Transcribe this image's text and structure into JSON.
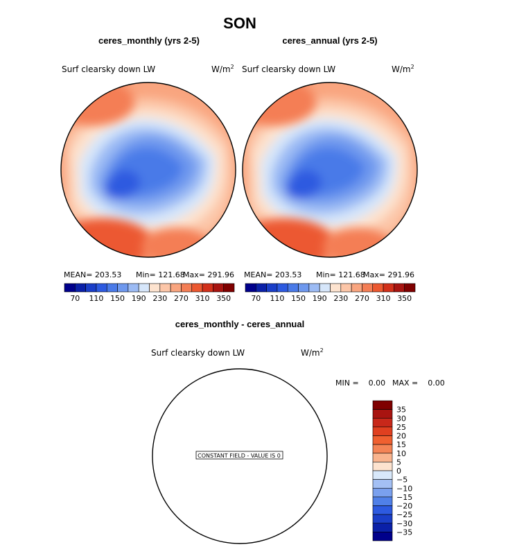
{
  "title": "SON",
  "panels": [
    {
      "subtitle": "ceres_monthly (yrs 2-5)",
      "field_label": "Surf clearsky down LW",
      "units_base": "W/m",
      "units_exp": "2",
      "stats": {
        "mean": "MEAN= 203.53",
        "min": "Min= 121.68",
        "max": "Max= 291.96"
      }
    },
    {
      "subtitle": "ceres_annual (yrs 2-5)",
      "field_label": "Surf clearsky down LW",
      "units_base": "W/m",
      "units_exp": "2",
      "stats": {
        "mean": "MEAN= 203.53",
        "min": "Min= 121.68",
        "max": "Max= 291.96"
      }
    },
    {
      "subtitle": "ceres_monthly - ceres_annual",
      "field_label": "Surf clearsky down LW",
      "units_base": "W/m",
      "units_exp": "2",
      "stats": {
        "min": "MIN =    0.00",
        "max": "MAX =    0.00"
      },
      "constant_note": "CONSTANT FIELD - VALUE IS 0"
    }
  ],
  "chart_data": [
    {
      "type": "heatmap",
      "title": "ceres_monthly (yrs 2-5)",
      "variable": "Surf clearsky down LW",
      "units": "W/m^2",
      "projection": "north polar stereographic",
      "mean": 203.53,
      "min": 121.68,
      "max": 291.96,
      "colorbar": {
        "levels": [
          70,
          90,
          110,
          130,
          150,
          170,
          190,
          210,
          230,
          250,
          270,
          290,
          310,
          330,
          350
        ],
        "tick_labels": [
          "70",
          "110",
          "150",
          "190",
          "230",
          "270",
          "310",
          "350"
        ],
        "colors": [
          "#00008b",
          "#0a20a8",
          "#1a3ec8",
          "#2d5ae0",
          "#4a7ae8",
          "#6e98ee",
          "#9cbbf4",
          "#d6e6fa",
          "#fde3cf",
          "#fcc6a8",
          "#f9a57f",
          "#f47e55",
          "#ec5830",
          "#d2301a",
          "#a81410",
          "#7f0000"
        ]
      }
    },
    {
      "type": "heatmap",
      "title": "ceres_annual (yrs 2-5)",
      "variable": "Surf clearsky down LW",
      "units": "W/m^2",
      "projection": "north polar stereographic",
      "mean": 203.53,
      "min": 121.68,
      "max": 291.96,
      "colorbar": {
        "levels": [
          70,
          90,
          110,
          130,
          150,
          170,
          190,
          210,
          230,
          250,
          270,
          290,
          310,
          330,
          350
        ],
        "tick_labels": [
          "70",
          "110",
          "150",
          "190",
          "230",
          "270",
          "310",
          "350"
        ],
        "colors": [
          "#00008b",
          "#0a20a8",
          "#1a3ec8",
          "#2d5ae0",
          "#4a7ae8",
          "#6e98ee",
          "#9cbbf4",
          "#d6e6fa",
          "#fde3cf",
          "#fcc6a8",
          "#f9a57f",
          "#f47e55",
          "#ec5830",
          "#d2301a",
          "#a81410",
          "#7f0000"
        ]
      }
    },
    {
      "type": "heatmap",
      "title": "ceres_monthly - ceres_annual",
      "variable": "Surf clearsky down LW",
      "units": "W/m^2",
      "projection": "north polar stereographic",
      "min": 0.0,
      "max": 0.0,
      "constant_value": 0,
      "colorbar": {
        "levels": [
          -35,
          -30,
          -25,
          -20,
          -15,
          -10,
          -5,
          0,
          5,
          10,
          15,
          20,
          25,
          30,
          35
        ],
        "tick_labels": [
          "35",
          "30",
          "25",
          "20",
          "15",
          "10",
          "5",
          "0",
          "−5",
          "−10",
          "−15",
          "−20",
          "−25",
          "−30",
          "−35"
        ],
        "colors": [
          "#7f0000",
          "#a81410",
          "#c8281a",
          "#e04020",
          "#f06030",
          "#f48456",
          "#f9b48e",
          "#fde3cf",
          "#d8e8fa",
          "#a4c0f4",
          "#7aa0ee",
          "#5080e8",
          "#2d5ae0",
          "#1a3ec8",
          "#0a20a8",
          "#00008b"
        ]
      }
    }
  ]
}
